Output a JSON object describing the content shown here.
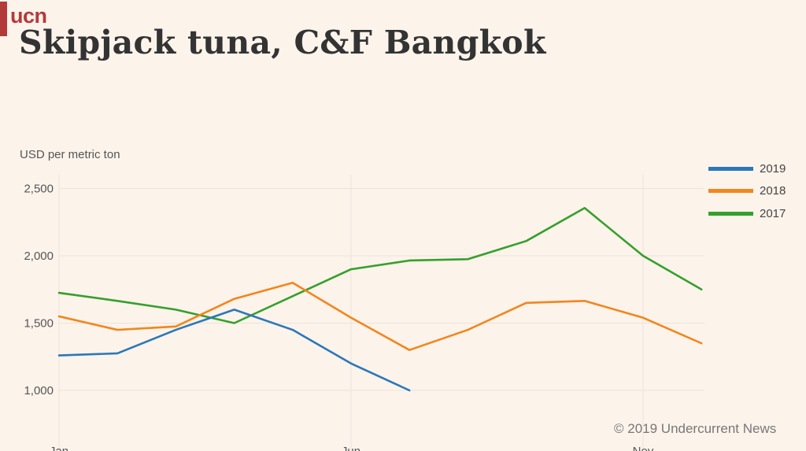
{
  "brand": {
    "logo_text": "ucn"
  },
  "chart_data": {
    "type": "line",
    "title": "Skipjack tuna, C&F Bangkok",
    "ylabel": "USD per metric ton",
    "xlabel": "",
    "ylim": [
      800,
      2600
    ],
    "y_ticks": [
      1000,
      1500,
      2000,
      2500
    ],
    "y_tick_labels": [
      "1,000",
      "1,500",
      "2,000",
      "2,500"
    ],
    "x_tick_labels": [
      "Jan",
      "Jun",
      "Nov"
    ],
    "x_tick_months": [
      1,
      6,
      11
    ],
    "months": [
      "Jan",
      "Feb",
      "Mar",
      "Apr",
      "May",
      "Jun",
      "Jul",
      "Aug",
      "Sep",
      "Oct",
      "Nov",
      "Dec"
    ],
    "grid": true,
    "legend_position": "top-right",
    "series": [
      {
        "name": "2019",
        "color": "#2b78b8",
        "values": [
          1260,
          1275,
          1450,
          1600,
          1450,
          1200,
          1000
        ]
      },
      {
        "name": "2018",
        "color": "#f2861e",
        "values": [
          1550,
          1450,
          1475,
          1680,
          1800,
          1540,
          1300,
          1450,
          1650,
          1665,
          1540,
          1350
        ]
      },
      {
        "name": "2017",
        "color": "#35a02c",
        "values": [
          1725,
          1665,
          1600,
          1500,
          1700,
          1900,
          1965,
          1975,
          2110,
          2355,
          2000,
          1750
        ]
      }
    ]
  },
  "footer": {
    "copyright": "© 2019 Undercurrent News"
  }
}
